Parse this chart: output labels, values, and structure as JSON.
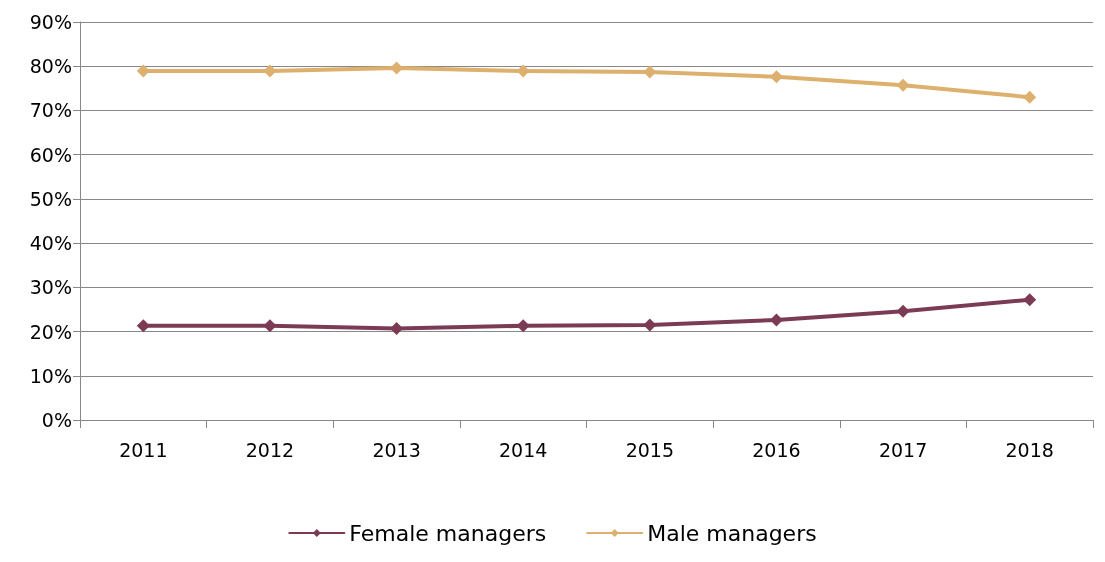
{
  "chart_data": {
    "type": "line",
    "categories": [
      "2011",
      "2012",
      "2013",
      "2014",
      "2015",
      "2016",
      "2017",
      "2018"
    ],
    "series": [
      {
        "name": "Female managers",
        "color": "#7b3b55",
        "values": [
          21.3,
          21.3,
          20.7,
          21.3,
          21.5,
          22.6,
          24.6,
          27.2
        ]
      },
      {
        "name": "Male managers",
        "color": "#ddb06e",
        "values": [
          78.9,
          78.9,
          79.6,
          78.9,
          78.7,
          77.6,
          75.7,
          73.0
        ]
      }
    ],
    "ylim": [
      0,
      90
    ],
    "yticks": [
      {
        "value": 0,
        "label": "0%"
      },
      {
        "value": 10,
        "label": "10%"
      },
      {
        "value": 20,
        "label": "20%"
      },
      {
        "value": 30,
        "label": "30%"
      },
      {
        "value": 40,
        "label": "40%"
      },
      {
        "value": 50,
        "label": "50%"
      },
      {
        "value": 60,
        "label": "60%"
      },
      {
        "value": 70,
        "label": "70%"
      },
      {
        "value": 80,
        "label": "80%"
      },
      {
        "value": 90,
        "label": "90%"
      }
    ],
    "grid": "y",
    "legend": "bottom",
    "marker": "diamond",
    "line_style": "solid"
  }
}
